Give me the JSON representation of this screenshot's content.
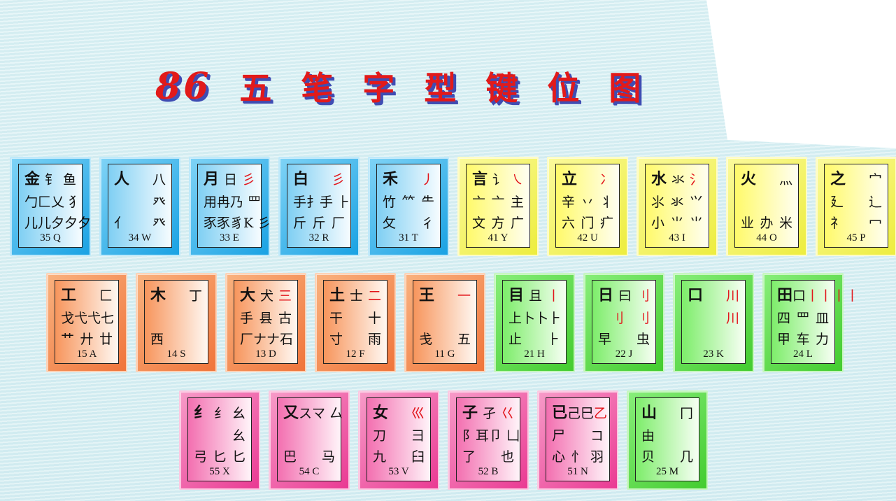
{
  "title": {
    "num": "86",
    "chars": [
      "五",
      "笔",
      "字",
      "型",
      "键",
      "位",
      "图"
    ]
  },
  "rows": [
    {
      "top": 224,
      "left": 14,
      "keys": [
        {
          "color": "blue",
          "lines": [
            [
              "金",
              "钅",
              "鱼"
            ],
            [
              "勹",
              "匚",
              "乂 犭"
            ],
            [
              "儿儿",
              "夕夕夕"
            ]
          ],
          "label": "35 Q"
        },
        {
          "color": "blue",
          "lines": [
            [
              "人",
              "",
              "八"
            ],
            [
              "",
              "",
              "癶"
            ],
            [
              "亻",
              "",
              "癶"
            ]
          ],
          "label": "34 W"
        },
        {
          "color": "blue",
          "lines": [
            [
              "月",
              "日",
              "彡"
            ],
            [
              "用",
              "冉",
              "乃 罒"
            ],
            [
              "豕豕",
              "豸",
              "K 彡"
            ]
          ],
          "label": "33 E"
        },
        {
          "color": "blue",
          "lines": [
            [
              "白",
              "",
              "彡"
            ],
            [
              "手",
              "扌",
              "手 ⺊"
            ],
            [
              "斤",
              "斤",
              "厂"
            ]
          ],
          "label": "32 R"
        },
        {
          "color": "blue",
          "lines": [
            [
              "禾",
              "",
              "丿"
            ],
            [
              "竹",
              "⺮",
              "⺧"
            ],
            [
              "攵",
              "",
              "彳"
            ]
          ],
          "label": "31 T"
        },
        {
          "color": "yellow",
          "lines": [
            [
              "言",
              "讠",
              "㇏"
            ],
            [
              "亠",
              "亠",
              "主"
            ],
            [
              "文",
              "方",
              "广"
            ]
          ],
          "label": "41 Y"
        },
        {
          "color": "yellow",
          "lines": [
            [
              "立",
              "",
              "冫"
            ],
            [
              "辛",
              "丷",
              "丬"
            ],
            [
              "六",
              "门",
              "疒"
            ]
          ],
          "label": "42 U"
        },
        {
          "color": "yellow",
          "lines": [
            [
              "水",
              "氺",
              "氵"
            ],
            [
              "⺢",
              "氺",
              "⺍"
            ],
            [
              "小",
              "⺌",
              "⺌"
            ]
          ],
          "label": "43 I"
        },
        {
          "color": "yellow",
          "lines": [
            [
              "火",
              "",
              "灬"
            ],
            [
              "",
              "",
              ""
            ],
            [
              "业",
              "办",
              "米"
            ]
          ],
          "label": "44 O"
        },
        {
          "color": "yellow",
          "lines": [
            [
              "之",
              "",
              "宀"
            ],
            [
              "廴",
              "",
              "辶"
            ],
            [
              "礻",
              "",
              "冖"
            ]
          ],
          "label": "45 P"
        }
      ]
    },
    {
      "top": 390,
      "left": 66,
      "keys": [
        {
          "color": "orange",
          "lines": [
            [
              "工",
              "",
              "匚"
            ],
            [
              "戈",
              "弋弋",
              "七"
            ],
            [
              "艹",
              "廾",
              "廿"
            ]
          ],
          "label": "15 A"
        },
        {
          "color": "orange",
          "lines": [
            [
              "木",
              "",
              "丁"
            ],
            [
              "",
              "",
              ""
            ],
            [
              "西",
              "",
              ""
            ]
          ],
          "label": "14 S"
        },
        {
          "color": "orange",
          "lines": [
            [
              "大",
              "犬",
              "三"
            ],
            [
              "手",
              "县",
              "古"
            ],
            [
              "厂",
              "ナナ",
              "石"
            ]
          ],
          "label": "13 D"
        },
        {
          "color": "orange",
          "lines": [
            [
              "土",
              "士",
              "二"
            ],
            [
              "干",
              "",
              "十"
            ],
            [
              "寸",
              "",
              "雨"
            ]
          ],
          "label": "12 F"
        },
        {
          "color": "orange",
          "lines": [
            [
              "王",
              "",
              "一"
            ],
            [
              "",
              "",
              ""
            ],
            [
              "戋",
              "",
              "五"
            ]
          ],
          "label": "11 G"
        },
        {
          "color": "green",
          "lines": [
            [
              "目",
              "且",
              "丨"
            ],
            [
              "上",
              "卜卜",
              "⺊"
            ],
            [
              "止",
              "",
              "⺊"
            ]
          ],
          "label": "21 H"
        },
        {
          "color": "green",
          "lines": [
            [
              "日",
              "曰",
              "刂"
            ],
            [
              "",
              "刂",
              "刂"
            ],
            [
              "早",
              "",
              "虫"
            ]
          ],
          "label": "22 J"
        },
        {
          "color": "green",
          "lines": [
            [
              "口",
              "",
              "川"
            ],
            [
              "",
              "",
              "川"
            ],
            [
              "",
              "",
              ""
            ]
          ],
          "label": "23 K"
        },
        {
          "color": "green",
          "lines": [
            [
              "田",
              "口",
              "丨丨丨丨"
            ],
            [
              "四",
              "罒",
              "皿"
            ],
            [
              "甲",
              "车",
              "力"
            ]
          ],
          "label": "24 L"
        }
      ]
    },
    {
      "top": 558,
      "left": 256,
      "keys": [
        {
          "color": "pink",
          "lines": [
            [
              "纟",
              "纟",
              "幺"
            ],
            [
              "",
              "",
              "幺"
            ],
            [
              "弓",
              "匕",
              "匕"
            ]
          ],
          "label": "55 X"
        },
        {
          "color": "pink",
          "lines": [
            [
              "又",
              "ス",
              "マ 厶"
            ],
            [
              "",
              "",
              ""
            ],
            [
              "巴",
              "",
              "马"
            ]
          ],
          "label": "54 C"
        },
        {
          "color": "pink",
          "lines": [
            [
              "女",
              "",
              "巛"
            ],
            [
              "刀",
              "",
              "彐"
            ],
            [
              "九",
              "",
              "臼"
            ]
          ],
          "label": "53 V"
        },
        {
          "color": "pink",
          "lines": [
            [
              "子",
              "孑",
              "巜"
            ],
            [
              "阝",
              "耳",
              "卩 凵"
            ],
            [
              "了",
              "",
              "也"
            ]
          ],
          "label": "52 B"
        },
        {
          "color": "pink",
          "lines": [
            [
              "已",
              "己巳",
              "乙"
            ],
            [
              "尸",
              "",
              "コ"
            ],
            [
              "心",
              "忄",
              "羽"
            ]
          ],
          "label": "51 N"
        },
        {
          "color": "green",
          "lines": [
            [
              "山",
              "",
              "冂"
            ],
            [
              "由",
              "",
              ""
            ],
            [
              "贝",
              "",
              "几"
            ]
          ],
          "label": "25 M"
        }
      ]
    }
  ],
  "colors": {
    "title_red": "#e21a1a",
    "title_shadow": "#3f4db3",
    "accent_red": "#e2141a"
  }
}
